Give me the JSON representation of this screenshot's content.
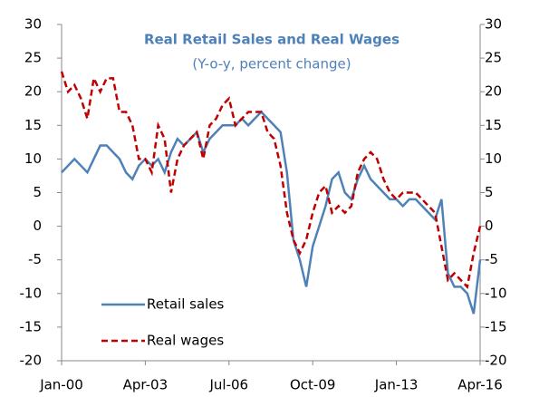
{
  "chart_data": {
    "type": "line",
    "title": "Real Retail Sales and Real Wages",
    "subtitle": "(Y-o-y, percent change)",
    "x": [
      2000,
      2000.25,
      2000.5,
      2000.75,
      2001,
      2001.25,
      2001.5,
      2001.75,
      2002,
      2002.25,
      2002.5,
      2002.75,
      2003,
      2003.25,
      2003.5,
      2003.75,
      2004,
      2004.25,
      2004.5,
      2004.75,
      2005,
      2005.25,
      2005.5,
      2005.75,
      2006,
      2006.25,
      2006.5,
      2006.75,
      2007,
      2007.25,
      2007.5,
      2007.75,
      2008,
      2008.25,
      2008.5,
      2008.75,
      2009,
      2009.25,
      2009.5,
      2009.75,
      2010,
      2010.25,
      2010.5,
      2010.75,
      2011,
      2011.25,
      2011.5,
      2011.75,
      2012,
      2012.25,
      2012.5,
      2012.75,
      2013,
      2013.25,
      2013.5,
      2013.75,
      2014,
      2014.25,
      2014.5,
      2014.75,
      2015,
      2015.25,
      2015.5,
      2015.75,
      2016,
      2016.25
    ],
    "series": [
      {
        "name": "Retail sales",
        "color": "#4f81b9",
        "dash": false,
        "values": [
          8,
          9,
          10,
          9,
          8,
          10,
          12,
          12,
          11,
          10,
          8,
          7,
          9,
          10,
          9,
          10,
          8,
          11,
          13,
          12,
          13,
          14,
          11,
          13,
          14,
          15,
          15,
          15,
          16,
          15,
          16,
          17,
          16,
          15,
          14,
          8,
          -2,
          -5,
          -9,
          -3,
          0,
          3,
          7,
          8,
          5,
          4,
          7,
          9,
          7,
          6,
          5,
          4,
          4,
          3,
          4,
          4,
          3,
          2,
          1,
          4,
          -7,
          -9,
          -9,
          -10,
          -13,
          -5
        ]
      },
      {
        "name": "Real wages",
        "color": "#c00000",
        "dash": true,
        "values": [
          23,
          20,
          21,
          19,
          16,
          22,
          20,
          22,
          22,
          17,
          17,
          15,
          10,
          10,
          8,
          15,
          13,
          5,
          10,
          12,
          13,
          14,
          10,
          15,
          16,
          18,
          19,
          15,
          16,
          17,
          17,
          17,
          14,
          13,
          9,
          2,
          -2,
          -4,
          -2,
          2,
          5,
          6,
          2,
          3,
          2,
          3,
          8,
          10,
          11,
          10,
          7,
          5,
          4,
          5,
          5,
          5,
          4,
          3,
          2,
          -3,
          -8,
          -7,
          -8,
          -9,
          -4,
          0
        ]
      }
    ],
    "xlim": [
      2000,
      2016.25
    ],
    "xticks": [
      {
        "value": 2000,
        "label": "Jan-00"
      },
      {
        "value": 2003.25,
        "label": "Apr-03"
      },
      {
        "value": 2006.5,
        "label": "Jul-06"
      },
      {
        "value": 2009.75,
        "label": "Oct-09"
      },
      {
        "value": 2013,
        "label": "Jan-13"
      },
      {
        "value": 2016.25,
        "label": "Apr-16"
      }
    ],
    "ylim": [
      -20,
      30
    ],
    "yticks": [
      -20,
      -15,
      -10,
      -5,
      0,
      5,
      10,
      15,
      20,
      25,
      30
    ],
    "y2lim": [
      -20,
      30
    ],
    "y2ticks": [
      -20,
      -15,
      -10,
      -5,
      0,
      5,
      10,
      15,
      20,
      25,
      30
    ],
    "legend": "lower left"
  }
}
